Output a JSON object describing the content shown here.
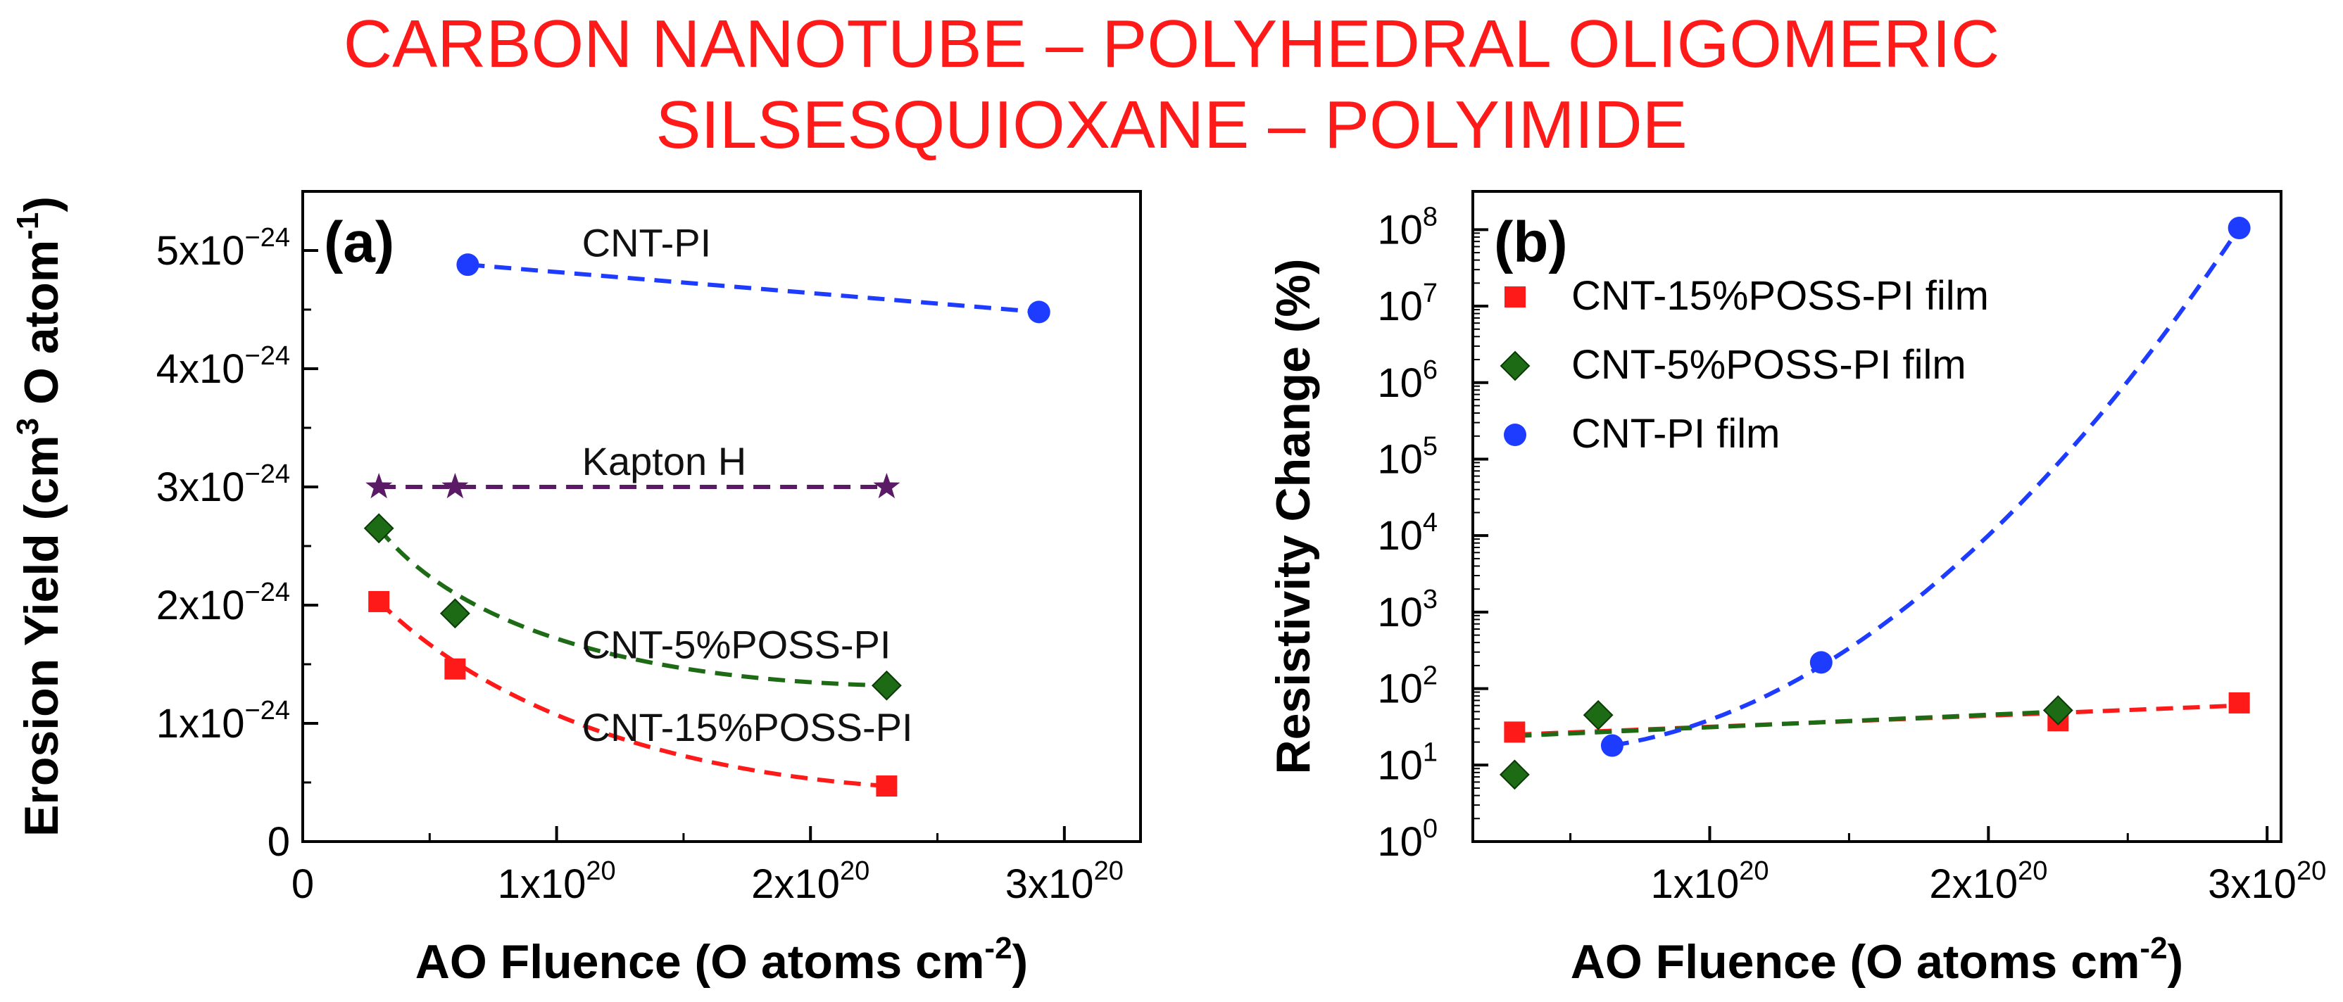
{
  "title": {
    "line1": "CARBON NANOTUBE – POLYHEDRAL OLIGOMERIC",
    "line2": "SILSESQUIOXANE – POLYIMIDE"
  },
  "colors": {
    "title": "#ff1a1a",
    "red": "#ff1a1a",
    "green": "#1e6b16",
    "blue": "#1e3cff",
    "purple": "#5a1a66",
    "axis": "#000000"
  },
  "chart_data": [
    {
      "type": "scatter",
      "panel_label": "(a)",
      "xlabel": "AO Fluence (O atoms cm",
      "xlabel_sup": "-2",
      "xlabel_end": ")",
      "ylabel": "Erosion Yield (cm",
      "ylabel_sup1": "3",
      "ylabel_mid": " O atom",
      "ylabel_sup2": "-1",
      "ylabel_end": ")",
      "xlim": [
        0,
        3.3e+20
      ],
      "ylim": [
        0,
        5.5e-24
      ],
      "x_ticks": [
        {
          "value": 0,
          "base": "0",
          "exp": ""
        },
        {
          "value": 1e+20,
          "base": "1x10",
          "exp": "20"
        },
        {
          "value": 2e+20,
          "base": "2x10",
          "exp": "20"
        },
        {
          "value": 3e+20,
          "base": "3x10",
          "exp": "20"
        }
      ],
      "y_ticks": [
        {
          "value": 0,
          "base": "0",
          "exp": ""
        },
        {
          "value": 1e-24,
          "base": "1x10",
          "exp": "−24"
        },
        {
          "value": 2e-24,
          "base": "2x10",
          "exp": "−24"
        },
        {
          "value": 3e-24,
          "base": "3x10",
          "exp": "−24"
        },
        {
          "value": 4e-24,
          "base": "4x10",
          "exp": "−24"
        },
        {
          "value": 5e-24,
          "base": "5x10",
          "exp": "−24"
        }
      ],
      "series": [
        {
          "name": "CNT-PI",
          "color": "#1e3cff",
          "marker": "circle",
          "x": [
            6.5e+19,
            2.9e+20
          ],
          "y": [
            4.88e-24,
            4.48e-24
          ],
          "label_at": [
            1.1e+20,
            4.95e-24
          ]
        },
        {
          "name": "Kapton H",
          "color": "#5a1a66",
          "marker": "star",
          "x": [
            3e+19,
            6e+19,
            2.3e+20
          ],
          "y": [
            3e-24,
            3e-24,
            3e-24
          ],
          "label_at": [
            1.1e+20,
            3.1e-24
          ]
        },
        {
          "name": "CNT-5%POSS-PI",
          "color": "#1e6b16",
          "marker": "diamond",
          "x": [
            3e+19,
            6e+19,
            2.3e+20
          ],
          "y": [
            2.65e-24,
            1.93e-24,
            1.32e-24
          ],
          "label_at": [
            1.1e+20,
            1.55e-24
          ]
        },
        {
          "name": "CNT-15%POSS-PI",
          "color": "#ff1a1a",
          "marker": "square",
          "x": [
            3e+19,
            6e+19,
            2.3e+20
          ],
          "y": [
            2.03e-24,
            1.46e-24,
            4.7e-25
          ],
          "label_at": [
            1.1e+20,
            8.5e-25
          ]
        }
      ]
    },
    {
      "type": "scatter",
      "yscale": "log",
      "panel_label": "(b)",
      "xlabel": "AO Fluence (O atoms cm",
      "xlabel_sup": "-2",
      "xlabel_end": ")",
      "ylabel": "Resistivity Change (%)",
      "xlim": [
        1.5e+19,
        3.05e+20
      ],
      "ylim_log10": [
        0,
        8.5
      ],
      "x_ticks": [
        {
          "value": 1e+20,
          "base": "1x10",
          "exp": "20"
        },
        {
          "value": 2e+20,
          "base": "2x10",
          "exp": "20"
        },
        {
          "value": 3e+20,
          "base": "3x10",
          "exp": "20"
        }
      ],
      "y_ticks": [
        {
          "exp10": 0,
          "base": "10",
          "exp": "0"
        },
        {
          "exp10": 1,
          "base": "10",
          "exp": "1"
        },
        {
          "exp10": 2,
          "base": "10",
          "exp": "2"
        },
        {
          "exp10": 3,
          "base": "10",
          "exp": "3"
        },
        {
          "exp10": 4,
          "base": "10",
          "exp": "4"
        },
        {
          "exp10": 5,
          "base": "10",
          "exp": "5"
        },
        {
          "exp10": 6,
          "base": "10",
          "exp": "6"
        },
        {
          "exp10": 7,
          "base": "10",
          "exp": "7"
        },
        {
          "exp10": 8,
          "base": "10",
          "exp": "8"
        }
      ],
      "legend_position": "top-left",
      "series": [
        {
          "name": "CNT-15%POSS-PI film",
          "color": "#ff1a1a",
          "marker": "square",
          "x": [
            3e+19,
            2.25e+20,
            2.9e+20
          ],
          "y": [
            27,
            38,
            65
          ]
        },
        {
          "name": "CNT-5%POSS-PI film",
          "color": "#1e6b16",
          "marker": "diamond",
          "x": [
            3e+19,
            6e+19,
            2.25e+20
          ],
          "y": [
            7.5,
            45,
            52
          ]
        },
        {
          "name": "CNT-PI film",
          "color": "#1e3cff",
          "marker": "circle",
          "x": [
            6.5e+19,
            1.4e+20,
            2.9e+20
          ],
          "y": [
            18,
            220,
            105000000.0
          ]
        }
      ]
    }
  ]
}
